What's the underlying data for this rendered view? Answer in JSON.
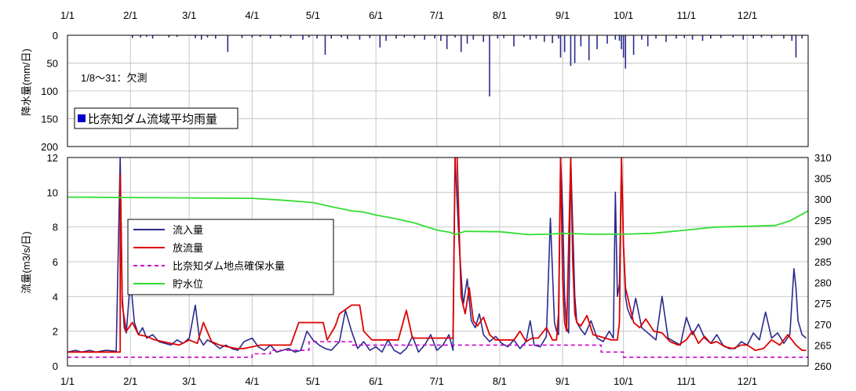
{
  "chart_data": [
    {
      "type": "bar",
      "panel": "top",
      "ylabel": "降水量(mm/日)",
      "ylim": [
        200,
        0
      ],
      "y_ticks": [
        0,
        50,
        100,
        150,
        200
      ],
      "x_axis": "date",
      "x_range": [
        "2000-01-01",
        "2000-12-31"
      ],
      "x_tick_labels": [
        "1/1",
        "2/1",
        "3/1",
        "4/1",
        "5/1",
        "6/1",
        "7/1",
        "8/1",
        "9/1",
        "10/1",
        "11/1",
        "12/1"
      ],
      "grid": true,
      "annotation": "1/8～31：欠測",
      "legend": {
        "placement": "bottom-left",
        "entries": [
          "比奈知ダム流域平均雨量"
        ]
      },
      "colors": {
        "rain": "#2a2a8c",
        "legend_swatch": "#0000cc"
      },
      "series": [
        {
          "name": "比奈知ダム流域平均雨量",
          "x": [
            "02-02",
            "02-06",
            "02-09",
            "02-12",
            "02-20",
            "02-24",
            "03-04",
            "03-07",
            "03-10",
            "03-14",
            "03-20",
            "03-27",
            "04-01",
            "04-05",
            "04-10",
            "04-15",
            "04-20",
            "04-26",
            "04-29",
            "05-03",
            "05-07",
            "05-10",
            "05-15",
            "05-18",
            "05-24",
            "05-29",
            "06-03",
            "06-06",
            "06-11",
            "06-15",
            "06-20",
            "06-25",
            "06-30",
            "07-03",
            "07-06",
            "07-10",
            "07-13",
            "07-16",
            "07-19",
            "07-24",
            "07-27",
            "07-31",
            "08-03",
            "08-08",
            "08-13",
            "08-16",
            "08-19",
            "08-23",
            "08-27",
            "08-30",
            "08-31",
            "09-02",
            "09-05",
            "09-07",
            "09-10",
            "09-14",
            "09-18",
            "09-23",
            "09-27",
            "09-29",
            "09-30",
            "10-01",
            "10-02",
            "10-06",
            "10-10",
            "10-13",
            "10-17",
            "10-22",
            "10-27",
            "10-31",
            "11-04",
            "11-09",
            "11-13",
            "11-18",
            "11-24",
            "11-29",
            "12-04",
            "12-08",
            "12-13",
            "12-19",
            "12-23",
            "12-25",
            "12-28"
          ],
          "values": [
            5,
            4,
            3,
            6,
            4,
            3,
            5,
            8,
            4,
            6,
            30,
            5,
            4,
            3,
            6,
            3,
            5,
            8,
            4,
            6,
            35,
            6,
            4,
            7,
            8,
            5,
            22,
            10,
            6,
            4,
            5,
            8,
            6,
            10,
            25,
            4,
            30,
            15,
            8,
            12,
            110,
            6,
            5,
            20,
            4,
            8,
            6,
            12,
            14,
            6,
            40,
            30,
            55,
            50,
            20,
            45,
            25,
            15,
            8,
            10,
            25,
            40,
            60,
            35,
            8,
            20,
            6,
            12,
            6,
            5,
            8,
            10,
            6,
            5,
            4,
            8,
            6,
            4,
            5,
            6,
            10,
            40,
            6
          ]
        }
      ]
    },
    {
      "type": "line",
      "panel": "bottom",
      "ylabel": "流量(m3/s/日)",
      "ylim": [
        0,
        12
      ],
      "y_ticks": [
        0,
        2,
        4,
        6,
        8,
        10,
        12
      ],
      "y2lim": [
        260,
        310
      ],
      "y2_ticks": [
        260,
        265,
        270,
        275,
        280,
        285,
        290,
        295,
        300,
        305,
        310
      ],
      "x_axis": "date",
      "x_range": [
        "2000-01-01",
        "2000-12-31"
      ],
      "x_tick_labels": [
        "1/1",
        "2/1",
        "3/1",
        "4/1",
        "5/1",
        "6/1",
        "7/1",
        "8/1",
        "9/1",
        "10/1",
        "11/1",
        "12/1"
      ],
      "grid": true,
      "legend": {
        "placement": "middle-left",
        "entries": [
          "流入量",
          "放流量",
          "比奈知ダム地点確保水量",
          "貯水位"
        ]
      },
      "colors": {
        "inflow": "#2a2a8c",
        "outflow": "#e00000",
        "secured": "#cc00cc",
        "storage": "#33dd33"
      },
      "series": [
        {
          "name": "流入量",
          "axis": "left",
          "x": [
            "01-01",
            "01-05",
            "01-08",
            "01-12",
            "01-15",
            "01-20",
            "01-25",
            "01-27",
            "01-28",
            "01-29",
            "01-30",
            "02-01",
            "02-03",
            "02-05",
            "02-07",
            "02-09",
            "02-12",
            "02-15",
            "02-18",
            "02-21",
            "02-24",
            "02-27",
            "03-01",
            "03-04",
            "03-06",
            "03-08",
            "03-10",
            "03-13",
            "03-16",
            "03-19",
            "03-22",
            "03-25",
            "03-28",
            "04-01",
            "04-04",
            "04-07",
            "04-10",
            "04-13",
            "04-16",
            "04-19",
            "04-22",
            "04-25",
            "04-28",
            "05-01",
            "05-04",
            "05-07",
            "05-10",
            "05-14",
            "05-17",
            "05-20",
            "05-23",
            "05-26",
            "05-29",
            "06-01",
            "06-04",
            "06-07",
            "06-10",
            "06-13",
            "06-16",
            "06-19",
            "06-22",
            "06-25",
            "06-28",
            "07-01",
            "07-04",
            "07-07",
            "07-09",
            "07-10",
            "07-12",
            "07-14",
            "07-16",
            "07-18",
            "07-20",
            "07-22",
            "07-24",
            "07-27",
            "07-30",
            "08-02",
            "08-05",
            "08-08",
            "08-11",
            "08-14",
            "08-16",
            "08-18",
            "08-21",
            "08-24",
            "08-26",
            "08-28",
            "08-29",
            "08-30",
            "08-31",
            "09-01",
            "09-02",
            "09-03",
            "09-04",
            "09-05",
            "09-06",
            "09-07",
            "09-08",
            "09-10",
            "09-12",
            "09-15",
            "09-18",
            "09-21",
            "09-24",
            "09-26",
            "09-27",
            "09-28",
            "09-29",
            "09-30",
            "10-01",
            "10-02",
            "10-03",
            "10-05",
            "10-07",
            "10-10",
            "10-12",
            "10-14",
            "10-17",
            "10-20",
            "10-23",
            "10-26",
            "10-29",
            "11-01",
            "11-04",
            "11-07",
            "11-10",
            "11-13",
            "11-16",
            "11-19",
            "11-22",
            "11-25",
            "11-28",
            "12-01",
            "12-04",
            "12-07",
            "12-10",
            "12-13",
            "12-16",
            "12-19",
            "12-22",
            "12-24",
            "12-25",
            "12-26",
            "12-27",
            "12-28",
            "12-30"
          ],
          "values": [
            0.8,
            0.9,
            0.8,
            0.9,
            0.8,
            0.9,
            0.85,
            12,
            4,
            2.2,
            1.9,
            5,
            2.5,
            1.8,
            2.2,
            1.6,
            1.8,
            1.4,
            1.3,
            1.2,
            1.5,
            1.3,
            1.6,
            3.5,
            1.6,
            1.2,
            1.5,
            1.3,
            1.0,
            1.2,
            1.0,
            0.9,
            1.4,
            1.6,
            1.1,
            0.9,
            1.2,
            0.8,
            0.9,
            1.0,
            0.8,
            0.9,
            2.0,
            1.5,
            1.2,
            1.0,
            0.9,
            1.4,
            3.2,
            2.0,
            1.0,
            1.4,
            0.9,
            1.1,
            0.8,
            1.5,
            0.9,
            0.7,
            1.0,
            1.7,
            0.8,
            1.2,
            1.8,
            0.9,
            1.2,
            1.8,
            0.9,
            12,
            7,
            3.5,
            5,
            2.6,
            2.2,
            3,
            1.8,
            1.4,
            1.7,
            1.3,
            1.1,
            1.5,
            1.0,
            1.4,
            2.6,
            1.2,
            1.1,
            1.7,
            8.5,
            2.5,
            2.0,
            1.8,
            12,
            9,
            4,
            2.2,
            1.9,
            12,
            8,
            4,
            2.5,
            2.1,
            1.8,
            2.6,
            1.6,
            1.4,
            2.0,
            1.6,
            10,
            4,
            4.7,
            12,
            7,
            4,
            3.3,
            2.7,
            3.9,
            2.2,
            2.0,
            1.8,
            1.5,
            4.0,
            1.6,
            1.4,
            1.2,
            2.8,
            1.8,
            2.4,
            1.6,
            1.3,
            1.8,
            1.2,
            1.0,
            1.0,
            1.4,
            1.2,
            1.9,
            1.5,
            3.1,
            1.6,
            1.9,
            1.3,
            1.8,
            5.6,
            4.5,
            2.6,
            2.2,
            1.8,
            1.6
          ]
        },
        {
          "name": "放流量",
          "axis": "left",
          "x": [
            "01-01",
            "01-27",
            "01-27",
            "01-28",
            "01-30",
            "02-02",
            "02-05",
            "02-09",
            "02-13",
            "02-17",
            "02-21",
            "02-25",
            "03-01",
            "03-05",
            "03-08",
            "03-12",
            "03-16",
            "03-20",
            "03-24",
            "03-28",
            "04-01",
            "04-05",
            "04-10",
            "04-20",
            "04-24",
            "04-25",
            "05-06",
            "05-08",
            "05-12",
            "05-14",
            "05-20",
            "05-24",
            "05-26",
            "05-30",
            "06-02",
            "06-04",
            "06-08",
            "06-12",
            "06-16",
            "06-19",
            "06-22",
            "06-25",
            "07-09",
            "07-10",
            "07-11",
            "07-13",
            "07-15",
            "07-17",
            "07-19",
            "07-21",
            "07-24",
            "07-27",
            "07-30",
            "08-02",
            "08-05",
            "08-08",
            "08-11",
            "08-14",
            "08-17",
            "08-20",
            "08-24",
            "08-27",
            "08-29",
            "08-30",
            "08-31",
            "09-01",
            "09-02",
            "09-03",
            "09-05",
            "09-06",
            "09-07",
            "09-08",
            "09-10",
            "09-13",
            "09-16",
            "09-19",
            "09-22",
            "09-25",
            "09-28",
            "09-29",
            "09-30",
            "10-01",
            "10-02",
            "10-04",
            "10-06",
            "10-09",
            "10-12",
            "10-16",
            "10-20",
            "10-24",
            "10-28",
            "11-01",
            "11-04",
            "11-07",
            "11-10",
            "11-13",
            "11-16",
            "11-20",
            "11-24",
            "11-28",
            "12-01",
            "12-05",
            "12-09",
            "12-13",
            "12-17",
            "12-21",
            "12-25",
            "12-28",
            "12-30"
          ],
          "values": [
            0.8,
            0.8,
            11,
            3.5,
            2.0,
            2.5,
            1.8,
            1.7,
            1.5,
            1.4,
            1.3,
            1.2,
            1.5,
            1.3,
            2.5,
            1.4,
            1.2,
            1.1,
            1.0,
            1.0,
            1.1,
            1.2,
            1.2,
            1.2,
            2.5,
            2.5,
            2.5,
            1.5,
            2.3,
            3.0,
            3.5,
            3.5,
            2.0,
            1.5,
            1.5,
            1.5,
            1.5,
            1.5,
            3.2,
            1.6,
            1.6,
            1.6,
            1.6,
            12,
            12,
            4.0,
            3.0,
            4.5,
            2.6,
            2.3,
            2.8,
            1.8,
            1.5,
            1.5,
            1.5,
            1.5,
            2.0,
            1.4,
            1.6,
            1.6,
            2.2,
            1.5,
            1.5,
            3.0,
            12,
            5,
            2.5,
            2.0,
            12,
            6,
            3.0,
            2.5,
            2.3,
            2.9,
            1.8,
            1.7,
            1.6,
            1.5,
            1.5,
            2.5,
            12,
            7,
            4.5,
            3.5,
            2.5,
            2.2,
            2.7,
            2.0,
            1.9,
            1.4,
            1.2,
            1.5,
            2.0,
            1.3,
            1.7,
            1.3,
            1.4,
            1.1,
            1.0,
            1.2,
            1.2,
            0.9,
            1.0,
            1.5,
            1.2,
            1.8,
            1.2,
            0.9,
            0.9
          ]
        },
        {
          "name": "比奈知ダム地点確保水量",
          "axis": "left",
          "x": [
            "01-01",
            "04-01",
            "04-01",
            "04-10",
            "04-10",
            "04-29",
            "04-29",
            "05-20",
            "05-20",
            "09-20",
            "09-20",
            "10-01",
            "10-01",
            "12-31"
          ],
          "values": [
            0.5,
            0.5,
            0.7,
            0.7,
            0.9,
            0.9,
            1.4,
            1.4,
            1.2,
            1.2,
            0.8,
            0.8,
            0.5,
            0.5
          ]
        },
        {
          "name": "貯水位",
          "axis": "right",
          "x": [
            "01-01",
            "02-01",
            "03-01",
            "04-01",
            "04-15",
            "05-01",
            "05-10",
            "05-20",
            "05-25",
            "06-01",
            "06-10",
            "06-20",
            "07-01",
            "07-08",
            "07-10",
            "07-15",
            "08-01",
            "08-15",
            "08-25",
            "09-01",
            "09-15",
            "10-01",
            "10-15",
            "11-01",
            "11-15",
            "12-01",
            "12-15",
            "12-22",
            "12-31"
          ],
          "values": [
            300.5,
            300.4,
            300.3,
            300.2,
            299.8,
            299.2,
            298.2,
            297.2,
            297.0,
            296.2,
            295.4,
            294.3,
            292.6,
            292.0,
            291.5,
            292.3,
            292.2,
            291.5,
            291.6,
            291.8,
            291.6,
            291.6,
            291.8,
            292.6,
            293.3,
            293.5,
            293.7,
            294.8,
            297.2
          ]
        }
      ]
    }
  ]
}
